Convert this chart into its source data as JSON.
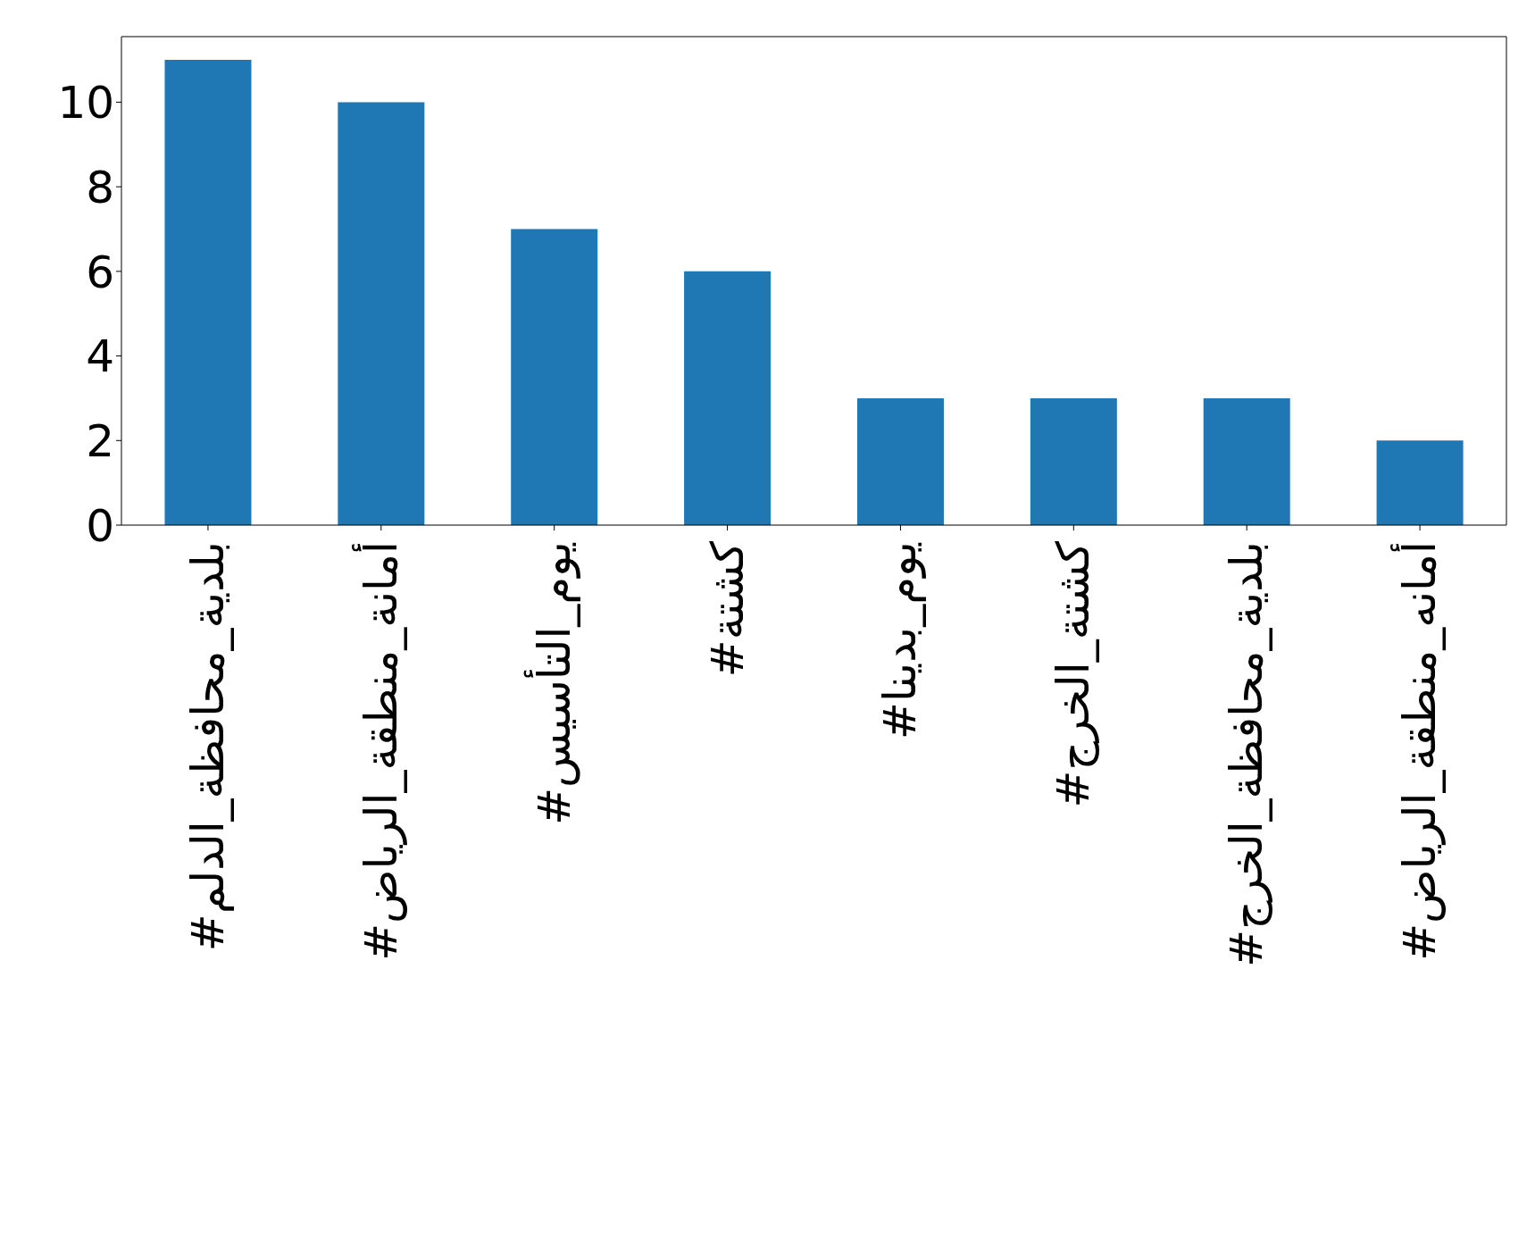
{
  "chart_data": {
    "type": "bar",
    "categories": [
      "#بلدية_محافظة_الدلم",
      "#أمانة_منطقة_الرياض",
      "#يوم_التأسيس",
      "#كشتة",
      "#يوم_بدينا",
      "#كشتة_الخرج",
      "#بلدية_محافظة_الخرج",
      "#أمانه_منطقة_الرياض"
    ],
    "values": [
      11,
      10,
      7,
      6,
      3,
      3,
      3,
      2
    ],
    "color": "#1f77b4",
    "ylim": [
      0,
      11.55
    ],
    "yticks": [
      0,
      2,
      4,
      6,
      8,
      10
    ],
    "grid": false
  }
}
